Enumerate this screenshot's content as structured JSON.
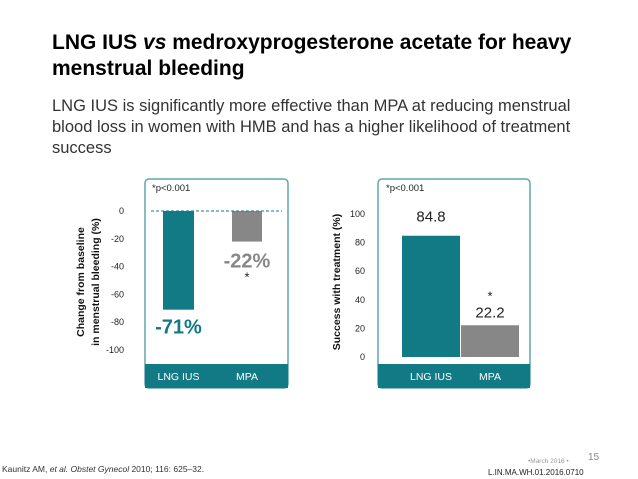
{
  "title": {
    "part1": "LNG IUS ",
    "part_italic": "vs",
    "part2": " medroxyprogesterone acetate for heavy menstrual bleeding"
  },
  "subtitle": "LNG IUS is significantly more effective than MPA at reducing menstrual blood loss in women with HMB and has a higher likelihood of treatment success",
  "colors": {
    "teal": "#127a85",
    "gray": "#878787",
    "band": "#127a85",
    "border": "#5fa7ad"
  },
  "chart_data": [
    {
      "type": "bar",
      "categories": [
        "LNG IUS",
        "MPA"
      ],
      "values": [
        -71,
        -22
      ],
      "value_labels": [
        "-71%",
        "-22%"
      ],
      "significance": [
        "",
        "*"
      ],
      "pvalue": "*p<0.001",
      "ylabel_lines": [
        "Change from baseline",
        "in menstrual bleeding (%)"
      ],
      "ylim": [
        -100,
        0
      ],
      "yticks": [
        "0",
        "-20",
        "-40",
        "-60",
        "-80",
        "-100"
      ],
      "ytick_values": [
        0,
        -20,
        -40,
        -60,
        -80,
        -100
      ],
      "baseline_dashed": true
    },
    {
      "type": "bar",
      "categories": [
        "LNG IUS",
        "MPA"
      ],
      "values": [
        84.8,
        22.2
      ],
      "value_labels": [
        "84.8",
        "22.2"
      ],
      "significance": [
        "",
        "*"
      ],
      "pvalue": "*p<0.001",
      "ylabel_lines": [
        "Success with treatment (%)"
      ],
      "ylim": [
        0,
        100
      ],
      "yticks": [
        "0",
        "20",
        "40",
        "60",
        "80",
        "100"
      ],
      "ytick_values": [
        0,
        20,
        40,
        60,
        80,
        100
      ]
    }
  ],
  "footer": {
    "ref_authors": "Kaunitz AM, ",
    "ref_etal": "et al. Obstet Gynecol",
    "ref_rest": " 2010; 116: 625–32.",
    "page": "15",
    "date": "•March 2016 •",
    "code": "L.IN.MA.WH.01.2016.0710"
  }
}
